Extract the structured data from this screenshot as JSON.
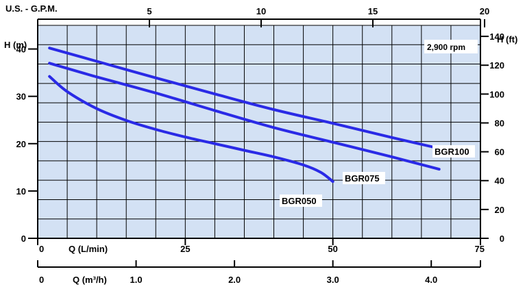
{
  "chart_data": {
    "type": "line",
    "title": "",
    "speed_label": "2,900 rpm",
    "x_axis_lpm": {
      "label": "Q (L/min)",
      "range": [
        0,
        75
      ],
      "ticks": [
        {
          "value": 0,
          "label": "0"
        },
        {
          "value": 25,
          "label": "25"
        },
        {
          "value": 50,
          "label": "50"
        },
        {
          "value": 75,
          "label": "75"
        }
      ]
    },
    "x_axis_m3h": {
      "label": "Q (m³/h)",
      "ticks": [
        {
          "value": 0,
          "label": "0"
        },
        {
          "value": 1.0,
          "label": "1.0"
        },
        {
          "value": 2.0,
          "label": "2.0"
        },
        {
          "value": 3.0,
          "label": "3.0"
        },
        {
          "value": 4.0,
          "label": "4.0"
        }
      ]
    },
    "x_axis_gpm": {
      "label": "U.S. - G.P.M.",
      "ticks": [
        {
          "value": 5,
          "label": "5"
        },
        {
          "value": 10,
          "label": "10"
        },
        {
          "value": 15,
          "label": "15"
        },
        {
          "value": 20,
          "label": "20"
        }
      ]
    },
    "y_axis_m": {
      "label": "H (m)",
      "range": [
        0,
        45
      ],
      "ticks": [
        {
          "value": 0,
          "label": "0"
        },
        {
          "value": 10,
          "label": "10"
        },
        {
          "value": 20,
          "label": "20"
        },
        {
          "value": 30,
          "label": "30"
        },
        {
          "value": 40,
          "label": "40"
        }
      ]
    },
    "y_axis_ft": {
      "label": "H (ft)",
      "ticks": [
        {
          "value": 0,
          "label": "0"
        },
        {
          "value": 20,
          "label": "20"
        },
        {
          "value": 40,
          "label": "40"
        },
        {
          "value": 60,
          "label": "60"
        },
        {
          "value": 80,
          "label": "80"
        },
        {
          "value": 100,
          "label": "100"
        },
        {
          "value": 120,
          "label": "120"
        },
        {
          "value": 140,
          "label": "140"
        }
      ]
    },
    "grid": true,
    "series": [
      {
        "name": "BGR100",
        "color": "#2a2ae6",
        "points": [
          [
            2,
            40.2
          ],
          [
            10,
            37.4
          ],
          [
            20,
            33.9
          ],
          [
            30,
            30.5
          ],
          [
            40,
            27.2
          ],
          [
            50,
            24.3
          ],
          [
            60,
            21.3
          ],
          [
            68,
            19.0
          ]
        ]
      },
      {
        "name": "BGR075",
        "color": "#2a2ae6",
        "points": [
          [
            2,
            37.0
          ],
          [
            10,
            34.1
          ],
          [
            20,
            30.7
          ],
          [
            30,
            27.0
          ],
          [
            40,
            23.4
          ],
          [
            50,
            20.3
          ],
          [
            60,
            17.2
          ],
          [
            68,
            14.6
          ]
        ]
      },
      {
        "name": "BGR050",
        "color": "#2a2ae6",
        "points": [
          [
            2,
            34.2
          ],
          [
            5,
            31.0
          ],
          [
            10,
            27.4
          ],
          [
            15,
            24.9
          ],
          [
            20,
            23.0
          ],
          [
            25,
            21.4
          ],
          [
            30,
            20.0
          ],
          [
            35,
            18.6
          ],
          [
            40,
            17.2
          ],
          [
            45,
            15.5
          ],
          [
            48,
            13.9
          ],
          [
            50,
            12.0
          ]
        ]
      }
    ],
    "colors": {
      "plot_background": "#d3e1f4",
      "grid_lines": "#000000",
      "curves": "#2a2ae6"
    }
  }
}
